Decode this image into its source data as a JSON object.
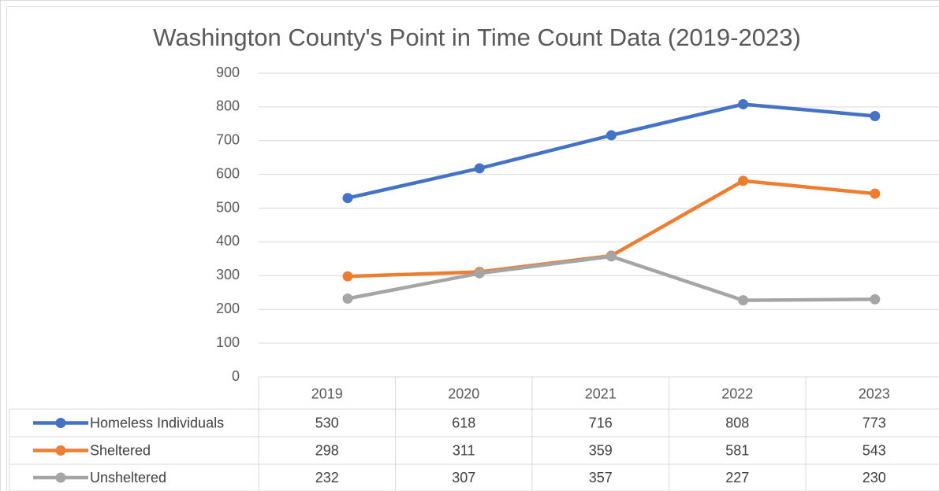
{
  "chart_data": {
    "type": "line",
    "title": "Washington County's Point in Time Count Data (2019-2023)",
    "categories": [
      "2019",
      "2020",
      "2021",
      "2022",
      "2023"
    ],
    "series": [
      {
        "name": "Homeless Individuals",
        "color": "#4472c4",
        "values": [
          530,
          618,
          716,
          808,
          773
        ]
      },
      {
        "name": "Sheltered",
        "color": "#ed7d31",
        "values": [
          298,
          311,
          359,
          581,
          543
        ]
      },
      {
        "name": "Unsheltered",
        "color": "#a5a5a5",
        "values": [
          232,
          307,
          357,
          227,
          230
        ]
      }
    ],
    "ylim": [
      0,
      900
    ],
    "yticks": [
      0,
      100,
      200,
      300,
      400,
      500,
      600,
      700,
      800,
      900
    ],
    "grid": true,
    "data_table": true
  }
}
